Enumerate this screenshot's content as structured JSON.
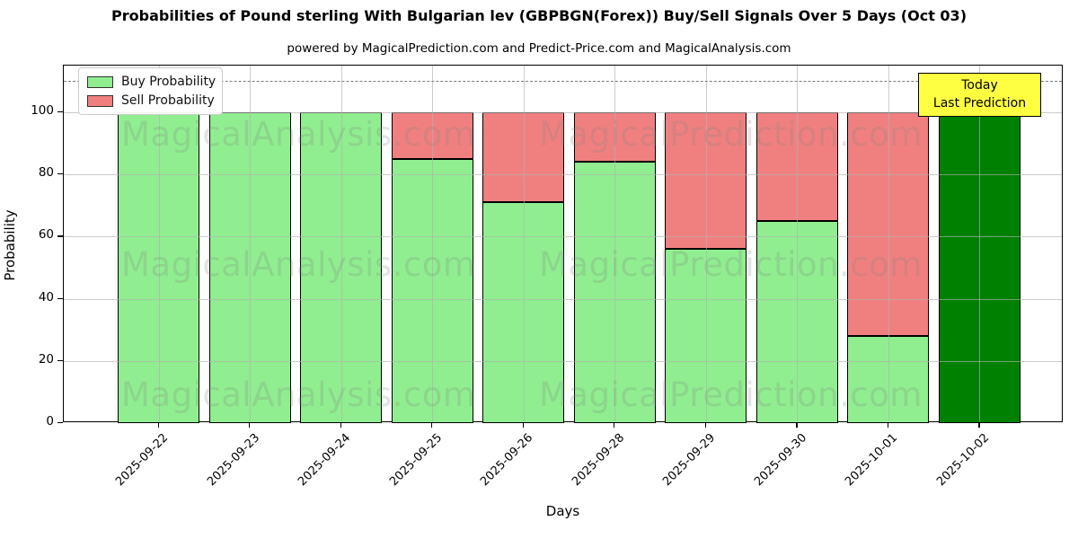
{
  "title": "Probabilities of Pound sterling With Bulgarian lev (GBPBGN(Forex)) Buy/Sell Signals Over 5 Days (Oct 03)",
  "subtitle": "powered by MagicalPrediction.com and Predict-Price.com and MagicalAnalysis.com",
  "legend": {
    "buy_label": "Buy Probability",
    "sell_label": "Sell Probability"
  },
  "annotation": {
    "line1": "Today",
    "line2": "Last Prediction"
  },
  "axes": {
    "x_label": "Days",
    "y_label": "Probability",
    "y_ticks": [
      0,
      20,
      40,
      60,
      80,
      100
    ]
  },
  "watermarks": {
    "left_text": "MagicalAnalysis.com",
    "right_text": "MagicalPrediction.com",
    "rows": 3
  },
  "colors": {
    "buy": "#90EE90",
    "sell": "#F08080",
    "today_bar": "#008000",
    "bar_edge": "#000000",
    "annotation_bg": "#FFFF42",
    "annotation_border": "#000000",
    "grid": "#B0B0B0",
    "dashed_line": "#7A7A7A",
    "watermark": "rgba(128,128,128,0.22)"
  },
  "chart_data": {
    "type": "bar",
    "stacked": true,
    "title": "Probabilities of Pound sterling With Bulgarian lev (GBPBGN(Forex)) Buy/Sell Signals Over 5 Days (Oct 03)",
    "xlabel": "Days",
    "ylabel": "Probability",
    "ylim": [
      0,
      115
    ],
    "grid": true,
    "legend_position": "upper left",
    "dashed_guideline_y": 110,
    "categories": [
      "2025-09-22",
      "2025-09-23",
      "2025-09-24",
      "2025-09-25",
      "2025-09-26",
      "2025-09-28",
      "2025-09-29",
      "2025-09-30",
      "2025-10-01",
      "2025-10-02"
    ],
    "series": [
      {
        "name": "Buy Probability",
        "color": "#90EE90",
        "values": [
          100,
          100,
          100,
          85,
          71,
          84,
          56,
          65,
          28,
          100
        ]
      },
      {
        "name": "Sell Probability",
        "color": "#F08080",
        "values": [
          0,
          0,
          0,
          15,
          29,
          16,
          44,
          35,
          72,
          0
        ]
      }
    ],
    "today_bar": {
      "index": 9,
      "color": "#008000",
      "note": "Today / Last Prediction"
    }
  }
}
